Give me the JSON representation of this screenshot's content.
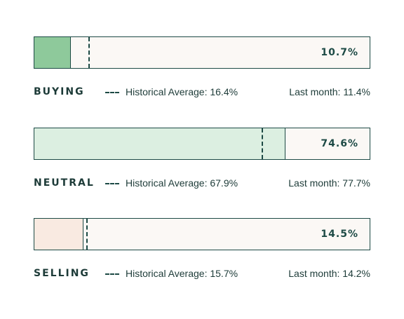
{
  "chart_data": {
    "type": "bar",
    "categories": [
      "BUYING",
      "NEUTRAL",
      "SELLING"
    ],
    "values": [
      10.7,
      74.6,
      14.5
    ],
    "value_labels": [
      "10.7%",
      "74.6%",
      "14.5%"
    ],
    "historical_average": [
      16.4,
      67.9,
      15.7
    ],
    "historical_labels": [
      "Historical Average: 16.4%",
      "Historical Average: 67.9%",
      "Historical Average: 15.7%"
    ],
    "last_month": [
      11.4,
      77.7,
      14.2
    ],
    "last_month_labels": [
      "Last month: 11.4%",
      "Last month: 77.7%",
      "Last month: 14.2%"
    ],
    "xlim": [
      0,
      100
    ],
    "fill_colors": [
      "#8ec99b",
      "#dcefe1",
      "#f9eae1"
    ],
    "bar_background": "#fbf8f5",
    "line_color": "#1d4a45"
  }
}
